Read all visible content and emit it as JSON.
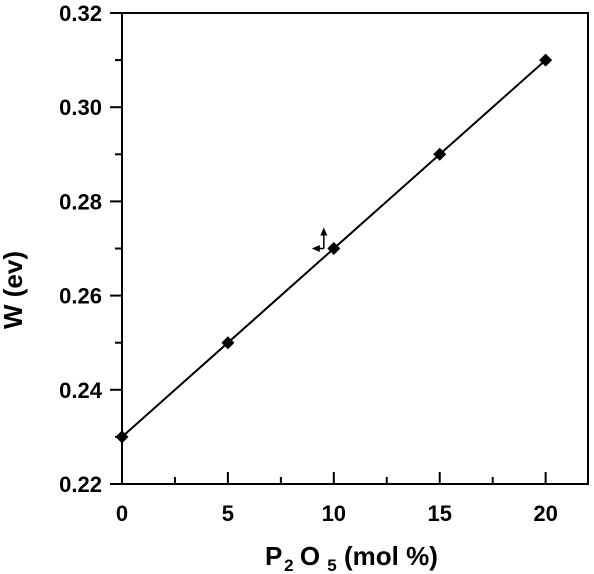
{
  "chart_data": {
    "type": "line",
    "title": "",
    "xlabel": {
      "base": "P",
      "sub1": "2",
      "mid": "O",
      "sub2": "5",
      "rest": "(mol %)"
    },
    "ylabel": "W (ev)",
    "xlim": [
      0,
      22
    ],
    "ylim": [
      0.22,
      0.32
    ],
    "xticks": [
      "0",
      "5",
      "10",
      "15",
      "20"
    ],
    "yticks": [
      "0.22",
      "0.24",
      "0.26",
      "0.28",
      "0.30",
      "0.32"
    ],
    "grid": false,
    "legend": "none",
    "marker": "diamond",
    "color": "#000000",
    "series": [
      {
        "x": [
          0,
          5,
          10,
          15,
          20
        ],
        "y": [
          0.23,
          0.25,
          0.27,
          0.29,
          0.31
        ]
      }
    ],
    "fit_line": {
      "x": [
        0,
        20
      ],
      "y": [
        0.23,
        0.31
      ]
    },
    "annotation": {
      "type": "error-arrows",
      "x": 10,
      "y": 0.27
    }
  }
}
